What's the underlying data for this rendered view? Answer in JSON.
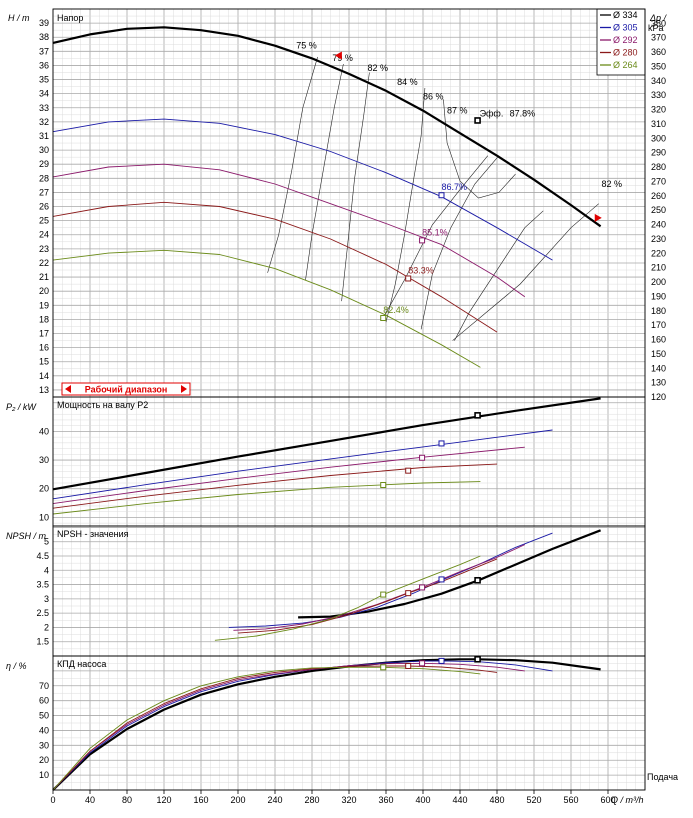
{
  "chart_data": {
    "type": "line",
    "x_axis": {
      "label": "Q / m³/h",
      "corner_label": "Подача",
      "range": [
        0,
        640
      ],
      "ticks": [
        0,
        40,
        80,
        120,
        160,
        200,
        240,
        280,
        320,
        360,
        400,
        440,
        480,
        520,
        560,
        600
      ]
    },
    "legend": {
      "placement": "top-right",
      "entries": [
        {
          "label": "Ø 334",
          "color": "#000000"
        },
        {
          "label": "Ø 305",
          "color": "#1a1aa6"
        },
        {
          "label": "Ø 292",
          "color": "#8b1a6b"
        },
        {
          "label": "Ø 280",
          "color": "#8b1a1a"
        },
        {
          "label": "Ø 264",
          "color": "#6b8b1a"
        }
      ]
    },
    "head_panel": {
      "title": "Напор",
      "ylabel": "H / m",
      "ylabel_right": "Δp / kPa",
      "ylim": [
        12.5,
        40
      ],
      "right_ylim": [
        120,
        390
      ],
      "yticks": [
        13,
        14,
        15,
        16,
        17,
        18,
        19,
        20,
        21,
        22,
        23,
        24,
        25,
        26,
        27,
        28,
        29,
        30,
        31,
        32,
        33,
        34,
        35,
        36,
        37,
        38,
        39
      ],
      "right_ticks": [
        120,
        130,
        140,
        150,
        160,
        170,
        180,
        190,
        200,
        210,
        220,
        230,
        240,
        250,
        260,
        270,
        280,
        290,
        300,
        310,
        320,
        330,
        340,
        350,
        360,
        370,
        380
      ],
      "operating_range_label": "Рабочий диапазон",
      "series": [
        {
          "name": "Ø 334",
          "color": "#000000",
          "bold": true,
          "x": [
            0,
            40,
            80,
            120,
            160,
            200,
            240,
            280,
            320,
            360,
            400,
            440,
            480,
            520,
            560,
            592
          ],
          "y": [
            37.6,
            38.2,
            38.6,
            38.7,
            38.5,
            38.1,
            37.4,
            36.5,
            35.4,
            34.2,
            32.8,
            31.2,
            29.6,
            27.9,
            26.1,
            24.6
          ]
        },
        {
          "name": "Ø 305",
          "color": "#1a1aa6",
          "x": [
            0,
            60,
            120,
            180,
            240,
            300,
            360,
            420,
            480,
            540
          ],
          "y": [
            31.3,
            32.0,
            32.2,
            31.9,
            31.1,
            29.9,
            28.4,
            26.7,
            24.5,
            22.2
          ]
        },
        {
          "name": "Ø 292",
          "color": "#8b1a6b",
          "x": [
            0,
            60,
            120,
            180,
            240,
            300,
            360,
            420,
            480,
            510
          ],
          "y": [
            28.1,
            28.8,
            29.0,
            28.6,
            27.6,
            26.2,
            24.8,
            23.3,
            21.0,
            19.6
          ]
        },
        {
          "name": "Ø 280",
          "color": "#8b1a1a",
          "x": [
            0,
            60,
            120,
            180,
            240,
            300,
            360,
            420,
            480
          ],
          "y": [
            25.3,
            26.0,
            26.3,
            26.0,
            25.1,
            23.7,
            21.9,
            19.6,
            17.1
          ]
        },
        {
          "name": "Ø 264",
          "color": "#6b8b1a",
          "x": [
            0,
            60,
            120,
            180,
            240,
            300,
            360,
            420,
            462
          ],
          "y": [
            22.2,
            22.7,
            22.9,
            22.6,
            21.6,
            20.1,
            18.3,
            16.2,
            14.6
          ]
        }
      ],
      "duty_points": [
        {
          "x": 459,
          "y": 32.1,
          "color": "#000000",
          "label": "Эфф.",
          "value": "87.8%"
        },
        {
          "x": 420,
          "y": 26.8,
          "color": "#1a1aa6",
          "label": "",
          "value": "86.7%"
        },
        {
          "x": 399,
          "y": 23.6,
          "color": "#8b1a6b",
          "label": "",
          "value": "85.1%"
        },
        {
          "x": 384,
          "y": 20.9,
          "color": "#8b1a1a",
          "label": "",
          "value": "83.3%"
        },
        {
          "x": 357,
          "y": 18.1,
          "color": "#6b8b1a",
          "label": "",
          "value": "82.4%"
        }
      ],
      "iso_efficiency_labels": [
        "75 %",
        "79 %",
        "82 %",
        "84 %",
        "86 %",
        "87 %",
        "82 %"
      ]
    },
    "power_panel": {
      "title": "Мощность на валу P2",
      "ylabel": "P₂ / kW",
      "yticks": [
        10,
        20,
        30,
        40
      ],
      "ylim": [
        7,
        52
      ],
      "series": [
        {
          "name": "Ø 334",
          "color": "#000000",
          "bold": true,
          "x": [
            0,
            100,
            200,
            300,
            400,
            500,
            592
          ],
          "y": [
            19.8,
            25.5,
            31.2,
            36.7,
            42.2,
            47.2,
            51.5
          ]
        },
        {
          "name": "Ø 305",
          "color": "#1a1aa6",
          "x": [
            0,
            100,
            200,
            300,
            400,
            540
          ],
          "y": [
            16.5,
            21.4,
            26.1,
            30.4,
            34.6,
            40.5
          ]
        },
        {
          "name": "Ø 292",
          "color": "#8b1a6b",
          "x": [
            0,
            100,
            200,
            300,
            400,
            510
          ],
          "y": [
            14.8,
            19.4,
            23.6,
            27.5,
            31.0,
            34.5
          ]
        },
        {
          "name": "Ø 280",
          "color": "#8b1a1a",
          "x": [
            0,
            100,
            200,
            300,
            400,
            480
          ],
          "y": [
            13.2,
            17.4,
            21.2,
            24.6,
            27.4,
            28.6
          ]
        },
        {
          "name": "Ø 264",
          "color": "#6b8b1a",
          "x": [
            0,
            100,
            200,
            300,
            400,
            462
          ],
          "y": [
            11.2,
            14.8,
            18.0,
            20.5,
            22.0,
            22.5
          ]
        }
      ],
      "duty_points": [
        {
          "x": 459,
          "y": 45.6,
          "color": "#000000"
        },
        {
          "x": 420,
          "y": 35.8,
          "color": "#1a1aa6"
        },
        {
          "x": 399,
          "y": 30.8,
          "color": "#8b1a6b"
        },
        {
          "x": 384,
          "y": 26.3,
          "color": "#8b1a1a"
        },
        {
          "x": 357,
          "y": 21.3,
          "color": "#6b8b1a"
        }
      ]
    },
    "npsh_panel": {
      "title": "NPSH - значения",
      "ylabel": "NPSH / m",
      "yticks": [
        1.5,
        2,
        2.5,
        3,
        3.5,
        4,
        4.5,
        5
      ],
      "ytick_labels": [
        "1.5",
        "2",
        "2.5",
        "3",
        "3.5",
        "4",
        "4.5",
        "5"
      ],
      "ylim": [
        1.0,
        5.55
      ],
      "series": [
        {
          "name": "Ø 334",
          "color": "#000000",
          "bold": true,
          "x": [
            265,
            300,
            340,
            380,
            420,
            460,
            500,
            540,
            592
          ],
          "y": [
            2.35,
            2.38,
            2.55,
            2.82,
            3.18,
            3.65,
            4.2,
            4.75,
            5.4
          ]
        },
        {
          "name": "Ø 305",
          "color": "#1a1aa6",
          "x": [
            190,
            230,
            270,
            310,
            350,
            390,
            420,
            460,
            500,
            540
          ],
          "y": [
            2.0,
            2.05,
            2.15,
            2.35,
            2.7,
            3.2,
            3.65,
            4.2,
            4.8,
            5.3
          ]
        },
        {
          "name": "Ø 292",
          "color": "#8b1a6b",
          "x": [
            195,
            230,
            270,
            310,
            350,
            399,
            440,
            480,
            510
          ],
          "y": [
            1.9,
            1.95,
            2.12,
            2.4,
            2.8,
            3.4,
            3.95,
            4.45,
            4.9
          ]
        },
        {
          "name": "Ø 280",
          "color": "#8b1a1a",
          "x": [
            200,
            240,
            280,
            320,
            360,
            384,
            420,
            480
          ],
          "y": [
            1.8,
            1.9,
            2.1,
            2.45,
            2.9,
            3.2,
            3.6,
            4.4
          ]
        },
        {
          "name": "Ø 264",
          "color": "#6b8b1a",
          "x": [
            175,
            220,
            260,
            300,
            330,
            357,
            400,
            440,
            462
          ],
          "y": [
            1.55,
            1.7,
            1.95,
            2.3,
            2.7,
            3.15,
            3.7,
            4.2,
            4.5
          ]
        }
      ],
      "duty_points": [
        {
          "x": 459,
          "y": 3.65,
          "color": "#000000"
        },
        {
          "x": 420,
          "y": 3.68,
          "color": "#1a1aa6"
        },
        {
          "x": 399,
          "y": 3.4,
          "color": "#8b1a6b"
        },
        {
          "x": 384,
          "y": 3.2,
          "color": "#8b1a1a"
        },
        {
          "x": 357,
          "y": 3.15,
          "color": "#6b8b1a"
        }
      ]
    },
    "efficiency_panel": {
      "title": "КПД насоса",
      "ylabel": "η / %",
      "yticks": [
        10,
        20,
        30,
        40,
        50,
        60,
        70
      ],
      "ylim": [
        0,
        90
      ],
      "series": [
        {
          "name": "Ø 334",
          "color": "#000000",
          "bold": true,
          "x": [
            0,
            40,
            80,
            120,
            160,
            200,
            240,
            280,
            320,
            360,
            400,
            440,
            460,
            500,
            540,
            592
          ],
          "y": [
            0,
            24,
            41,
            54,
            64,
            71,
            76,
            80,
            83,
            85.5,
            87.2,
            87.8,
            87.8,
            87.2,
            85.5,
            81
          ]
        },
        {
          "name": "Ø 305",
          "color": "#1a1aa6",
          "x": [
            0,
            40,
            80,
            120,
            160,
            200,
            240,
            280,
            320,
            360,
            400,
            420,
            460,
            500,
            540
          ],
          "y": [
            0,
            25,
            43,
            56,
            66,
            73,
            77.5,
            81,
            83.5,
            85.5,
            86.6,
            86.7,
            86.2,
            84,
            80
          ]
        },
        {
          "name": "Ø 292",
          "color": "#8b1a6b",
          "x": [
            0,
            40,
            80,
            120,
            160,
            200,
            240,
            280,
            320,
            360,
            399,
            440,
            480,
            510
          ],
          "y": [
            0,
            26,
            44,
            57,
            67,
            74,
            78,
            81,
            83.5,
            84.8,
            85.1,
            84.4,
            82.5,
            80
          ]
        },
        {
          "name": "Ø 280",
          "color": "#8b1a1a",
          "x": [
            0,
            40,
            80,
            120,
            160,
            200,
            240,
            280,
            320,
            360,
            384,
            420,
            460,
            480
          ],
          "y": [
            0,
            26,
            45,
            58,
            68,
            75,
            79,
            81.5,
            83,
            83.3,
            83.3,
            82.6,
            80.5,
            79
          ]
        },
        {
          "name": "Ø 264",
          "color": "#6b8b1a",
          "x": [
            0,
            40,
            80,
            120,
            160,
            200,
            240,
            280,
            320,
            357,
            400,
            440,
            462
          ],
          "y": [
            0,
            28,
            47,
            60,
            70,
            76,
            80,
            82,
            82.4,
            82.4,
            81.5,
            79.5,
            78
          ]
        }
      ],
      "duty_points": [
        {
          "x": 459,
          "y": 87.8,
          "color": "#000000"
        },
        {
          "x": 420,
          "y": 86.7,
          "color": "#1a1aa6"
        },
        {
          "x": 399,
          "y": 85.1,
          "color": "#8b1a6b"
        },
        {
          "x": 384,
          "y": 83.3,
          "color": "#8b1a1a"
        },
        {
          "x": 357,
          "y": 82.4,
          "color": "#6b8b1a"
        }
      ]
    }
  }
}
